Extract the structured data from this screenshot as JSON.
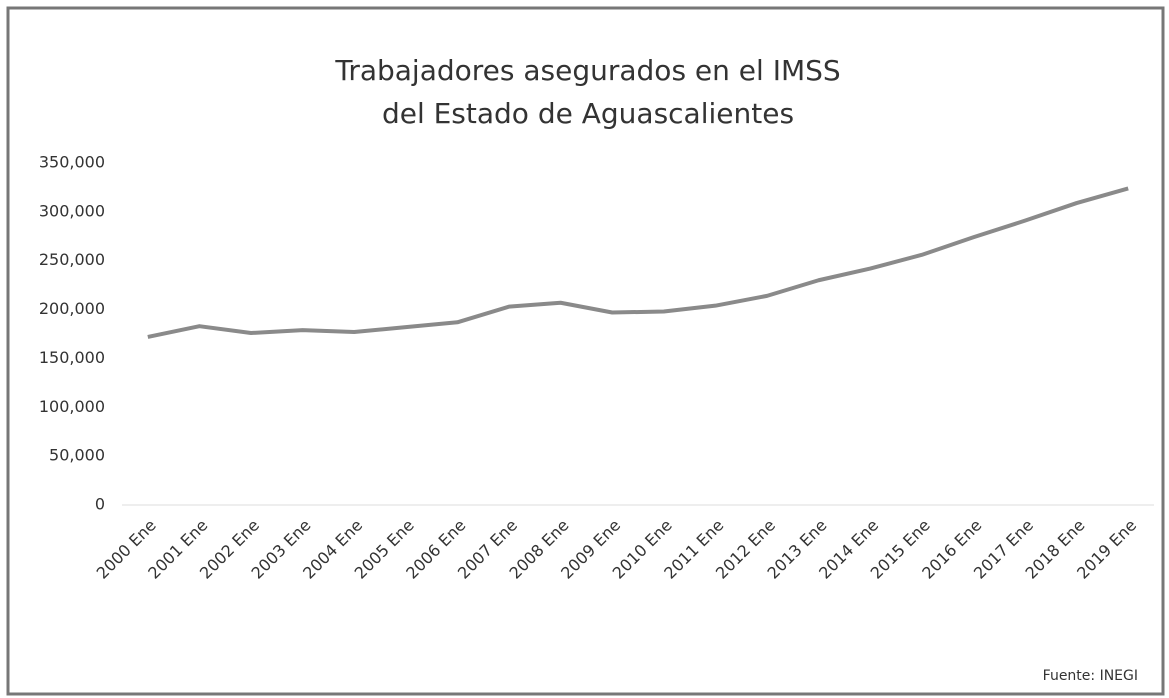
{
  "chart_data": {
    "type": "line",
    "title": [
      "Trabajadores asegurados en el IMSS",
      "del Estado de Aguascalientes"
    ],
    "source": "Fuente: INEGI",
    "categories": [
      "2000 Ene",
      "2001 Ene",
      "2002 Ene",
      "2003 Ene",
      "2004 Ene",
      "2005 Ene",
      "2006 Ene",
      "2007 Ene",
      "2008 Ene",
      "2009 Ene",
      "2010 Ene",
      "2011 Ene",
      "2012 Ene",
      "2013 Ene",
      "2014 Ene",
      "2015 Ene",
      "2016 Ene",
      "2017 Ene",
      "2018 Ene",
      "2019 Ene"
    ],
    "values": [
      172000,
      183000,
      176000,
      179000,
      177000,
      182000,
      187000,
      203000,
      207000,
      197000,
      198000,
      204000,
      214000,
      230000,
      242000,
      256000,
      274000,
      291000,
      309000,
      324000
    ],
    "color": "#8a8a8a",
    "ylim": [
      0,
      350000
    ],
    "yticks": [
      0,
      {
        "value": 50000,
        "label": "50,000"
      },
      {
        "value": 100000,
        "label": "100,000"
      },
      {
        "value": 150000,
        "label": "150,000"
      },
      {
        "value": 200000,
        "label": "200,000"
      },
      {
        "value": 250000,
        "label": "250,000"
      },
      {
        "value": 300000,
        "label": "300,000"
      },
      {
        "value": 350000,
        "label": "350,000"
      }
    ],
    "grid": false
  }
}
